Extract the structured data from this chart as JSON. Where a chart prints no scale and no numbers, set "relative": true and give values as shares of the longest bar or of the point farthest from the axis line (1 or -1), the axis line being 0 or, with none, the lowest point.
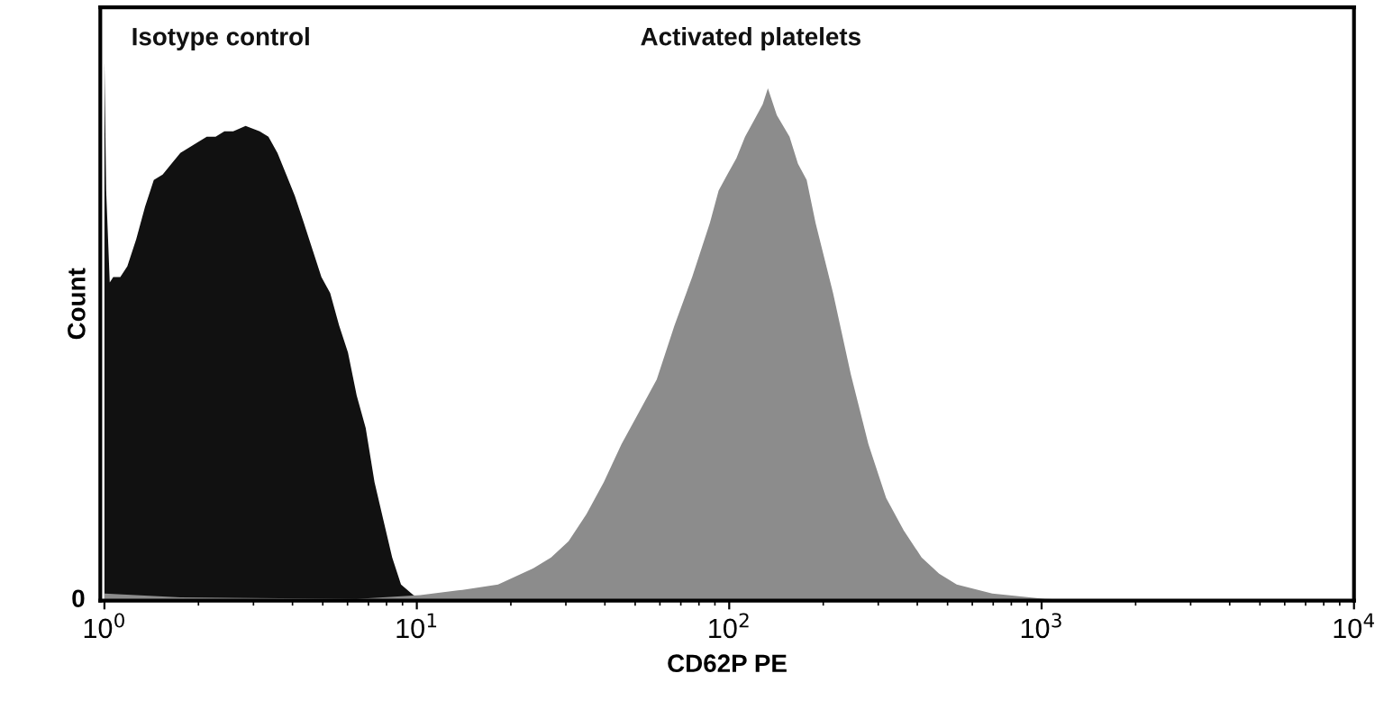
{
  "chart_data": {
    "type": "area",
    "relative": true,
    "log": "x",
    "xlabel": "CD62P PE",
    "ylabel": "Count",
    "legend": false,
    "grid": false,
    "xlim": [
      0.97,
      10000
    ],
    "xticks": [
      {
        "value": 1,
        "label": "10$^{0}$"
      },
      {
        "value": 10,
        "label": "10$^{1}$"
      },
      {
        "value": 100,
        "label": "10$^{2}$"
      },
      {
        "value": 1000,
        "label": "10$^{3}$"
      },
      {
        "value": 10000,
        "label": "10$^{4}$"
      }
    ],
    "annotations": [
      "0"
    ],
    "series": [
      {
        "name": "Isotype control",
        "color": "#111111",
        "x": [
          1.0,
          1.013,
          1.04,
          1.067,
          1.124,
          1.184,
          1.264,
          1.349,
          1.439,
          1.536,
          1.639,
          1.75,
          1.867,
          1.992,
          2.126,
          2.269,
          2.421,
          2.584,
          2.831,
          3.14,
          3.35,
          3.58,
          3.82,
          4.07,
          4.35,
          4.64,
          4.95,
          5.28,
          5.64,
          6.02,
          6.42,
          6.86,
          7.32,
          7.81,
          8.34,
          8.9,
          9.75,
          10.8
        ],
        "values": [
          1.0,
          0.76,
          0.59,
          0.6,
          0.6,
          0.62,
          0.67,
          0.73,
          0.78,
          0.79,
          0.81,
          0.83,
          0.84,
          0.85,
          0.86,
          0.86,
          0.87,
          0.87,
          0.88,
          0.87,
          0.86,
          0.83,
          0.79,
          0.75,
          0.7,
          0.65,
          0.6,
          0.57,
          0.51,
          0.46,
          0.38,
          0.32,
          0.22,
          0.15,
          0.08,
          0.03,
          0.01,
          0
        ]
      },
      {
        "name": "Activated platelets",
        "color": "#8c8c8c",
        "x": [
          1.0,
          1.75,
          6.42,
          10.26,
          14.0,
          18.2,
          23.6,
          26.9,
          30.6,
          34.9,
          39.7,
          45.2,
          51.5,
          58.6,
          66.8,
          76.1,
          86.7,
          92.5,
          98.6,
          105.4,
          112.4,
          120,
          128,
          133,
          142,
          156,
          166,
          177,
          189,
          215,
          245,
          279,
          318,
          362,
          413,
          470,
          535,
          695,
          1026,
          1517
        ],
        "values": [
          0.013,
          0.006,
          0.003,
          0.01,
          0.02,
          0.03,
          0.06,
          0.08,
          0.11,
          0.16,
          0.22,
          0.29,
          0.35,
          0.41,
          0.51,
          0.6,
          0.7,
          0.76,
          0.79,
          0.82,
          0.86,
          0.89,
          0.92,
          0.95,
          0.9,
          0.86,
          0.81,
          0.78,
          0.7,
          0.57,
          0.42,
          0.29,
          0.19,
          0.13,
          0.08,
          0.05,
          0.03,
          0.013,
          0.003,
          0
        ]
      }
    ]
  }
}
